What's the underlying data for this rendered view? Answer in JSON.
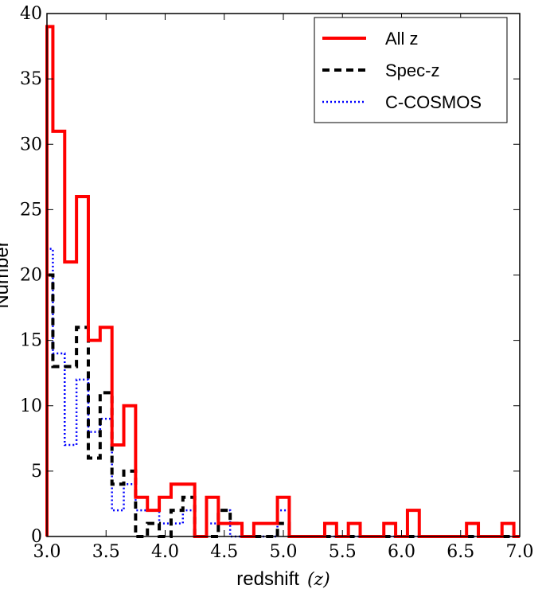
{
  "chart_data": {
    "type": "histogram-step",
    "title": "",
    "xlabel": "redshift",
    "xlabel_var": "(z)",
    "ylabel": "Number",
    "xlim": [
      3.0,
      7.0
    ],
    "ylim": [
      0,
      40
    ],
    "x_ticks": [
      3.0,
      3.5,
      4.0,
      4.5,
      5.0,
      5.5,
      6.0,
      6.5,
      7.0
    ],
    "x_tick_labels": [
      "3.0",
      "3.5",
      "4.0",
      "4.5",
      "5.0",
      "5.5",
      "6.0",
      "6.5",
      "7.0"
    ],
    "y_ticks": [
      0,
      5,
      10,
      15,
      20,
      25,
      30,
      35,
      40
    ],
    "y_tick_labels": [
      "0",
      "5",
      "10",
      "15",
      "20",
      "25",
      "30",
      "35",
      "40"
    ],
    "grid": false,
    "legend_position": "top-right",
    "bin_edges": [
      3.0,
      3.05,
      3.1,
      3.15,
      3.2,
      3.25,
      3.3,
      3.35,
      3.4,
      3.45,
      3.5,
      3.55,
      3.6,
      3.65,
      3.7,
      3.75,
      3.8,
      3.85,
      3.9,
      3.95,
      4.0,
      4.05,
      4.1,
      4.15,
      4.2,
      4.25,
      4.3,
      4.35,
      4.4,
      4.45,
      4.5,
      4.55,
      4.6,
      4.65,
      4.7,
      4.75,
      4.8,
      4.85,
      4.9,
      4.95,
      5.0,
      5.05,
      5.1,
      5.15,
      5.2,
      5.25,
      5.3,
      5.35,
      5.4,
      5.45,
      5.5,
      5.55,
      5.6,
      5.65,
      5.7,
      5.75,
      5.8,
      5.85,
      5.9,
      5.95,
      6.0,
      6.05,
      6.1,
      6.15,
      6.2,
      6.25,
      6.3,
      6.35,
      6.4,
      6.45,
      6.5,
      6.55,
      6.6,
      6.65,
      6.7,
      6.75,
      6.8,
      6.85,
      6.9,
      6.95,
      7.0
    ],
    "series": [
      {
        "name": "All z",
        "color": "#ff0000",
        "linestyle": "solid",
        "values": [
          39,
          31,
          31,
          21,
          21,
          26,
          26,
          15,
          15,
          16,
          16,
          7,
          7,
          10,
          10,
          3,
          3,
          2,
          2,
          3,
          3,
          4,
          4,
          4,
          4,
          0,
          0,
          3,
          3,
          1,
          1,
          1,
          1,
          0,
          0,
          1,
          1,
          1,
          1,
          3,
          3,
          0,
          0,
          0,
          0,
          0,
          0,
          1,
          1,
          0,
          0,
          1,
          1,
          0,
          0,
          0,
          0,
          1,
          1,
          0,
          0,
          2,
          2,
          0,
          0,
          0,
          0,
          0,
          0,
          0,
          0,
          1,
          1,
          0,
          0,
          0,
          0,
          1,
          1,
          0
        ]
      },
      {
        "name": "Spec-z",
        "color": "#000000",
        "linestyle": "dashed",
        "values": [
          20,
          13,
          13,
          13,
          13,
          16,
          16,
          6,
          6,
          11,
          11,
          4,
          4,
          5,
          5,
          0,
          0,
          1,
          1,
          0,
          0,
          2,
          2,
          3,
          3,
          0,
          0,
          0,
          0,
          2,
          2,
          1,
          1,
          0,
          0,
          0,
          0,
          0,
          0,
          1,
          1,
          0,
          0,
          0,
          0,
          0,
          0,
          0,
          0,
          0,
          0,
          0,
          0,
          0,
          0,
          0,
          0,
          0,
          0,
          0,
          0,
          0,
          0,
          0,
          0,
          0,
          0,
          0,
          0,
          0,
          0,
          0,
          0,
          0,
          0,
          0,
          0,
          0,
          0,
          0
        ]
      },
      {
        "name": "C-COSMOS",
        "color": "#0000ff",
        "linestyle": "dotted",
        "values": [
          22,
          14,
          14,
          7,
          7,
          12,
          12,
          8,
          8,
          9,
          9,
          2,
          2,
          4,
          4,
          2,
          2,
          2,
          2,
          1,
          1,
          1,
          1,
          2,
          2,
          0,
          0,
          1,
          1,
          2,
          2,
          0,
          0,
          0,
          0,
          0,
          0,
          0,
          0,
          2,
          2,
          0,
          0,
          0,
          0,
          0,
          0,
          0,
          0,
          0,
          0,
          0,
          0,
          0,
          0,
          0,
          0,
          0,
          0,
          0,
          0,
          0,
          0,
          0,
          0,
          0,
          0,
          0,
          0,
          0,
          0,
          0,
          0,
          0,
          0,
          0,
          0,
          0,
          0,
          0
        ]
      }
    ]
  }
}
